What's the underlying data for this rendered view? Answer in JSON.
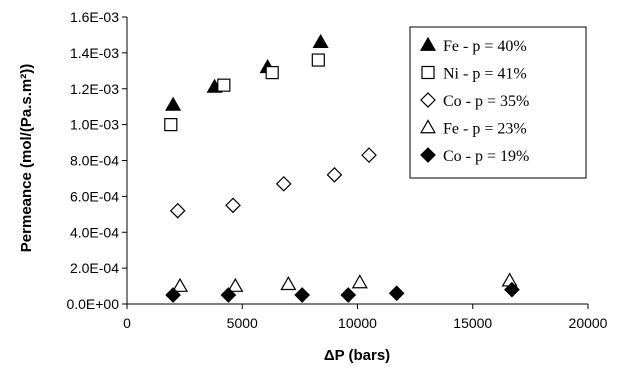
{
  "chart_data": {
    "type": "scatter",
    "title": "",
    "xlabel": "ΔP (bars)",
    "ylabel": "Permeance (mol/(Pa.s.m²))",
    "xlim": [
      0,
      20000
    ],
    "ylim": [
      0,
      0.0016
    ],
    "x_ticks": [
      "0",
      "5000",
      "10000",
      "15000",
      "20000"
    ],
    "y_ticks": [
      "0.0E+00",
      "2.0E-04",
      "4.0E-04",
      "6.0E-04",
      "8.0E-04",
      "1.0E-03",
      "1.2E-03",
      "1.4E-03",
      "1.6E-03"
    ],
    "x_tick_values": [
      0,
      5000,
      10000,
      15000,
      20000
    ],
    "y_tick_values": [
      0,
      0.0002,
      0.0004,
      0.0006,
      0.0008,
      0.001,
      0.0012,
      0.0014,
      0.0016
    ],
    "grid": false,
    "legend_position": "top-right",
    "series": [
      {
        "name": "Fe - p = 40%",
        "marker": "filled-triangle",
        "color": "#000000",
        "points": [
          [
            2000,
            0.00111
          ],
          [
            3800,
            0.00121
          ],
          [
            6100,
            0.00132
          ],
          [
            8400,
            0.00146
          ]
        ]
      },
      {
        "name": "Ni - p = 41%",
        "marker": "open-square",
        "color": "#000000",
        "points": [
          [
            1900,
            0.001
          ],
          [
            4200,
            0.00122
          ],
          [
            6300,
            0.00129
          ],
          [
            8300,
            0.00136
          ]
        ]
      },
      {
        "name": "Co - p = 35%",
        "marker": "open-diamond",
        "color": "#000000",
        "points": [
          [
            2200,
            0.00052
          ],
          [
            4600,
            0.00055
          ],
          [
            6800,
            0.00067
          ],
          [
            9000,
            0.00072
          ],
          [
            10500,
            0.00083
          ]
        ]
      },
      {
        "name": "Fe - p = 23%",
        "marker": "open-triangle",
        "color": "#000000",
        "points": [
          [
            2300,
            0.0001
          ],
          [
            4700,
            0.0001
          ],
          [
            7000,
            0.00011
          ],
          [
            10100,
            0.00012
          ],
          [
            16600,
            0.00013
          ]
        ]
      },
      {
        "name": "Co - p = 19%",
        "marker": "filled-diamond",
        "color": "#000000",
        "points": [
          [
            2000,
            5e-05
          ],
          [
            4400,
            5e-05
          ],
          [
            7600,
            5e-05
          ],
          [
            9600,
            5e-05
          ],
          [
            11700,
            6e-05
          ],
          [
            16700,
            8e-05
          ]
        ]
      }
    ]
  }
}
